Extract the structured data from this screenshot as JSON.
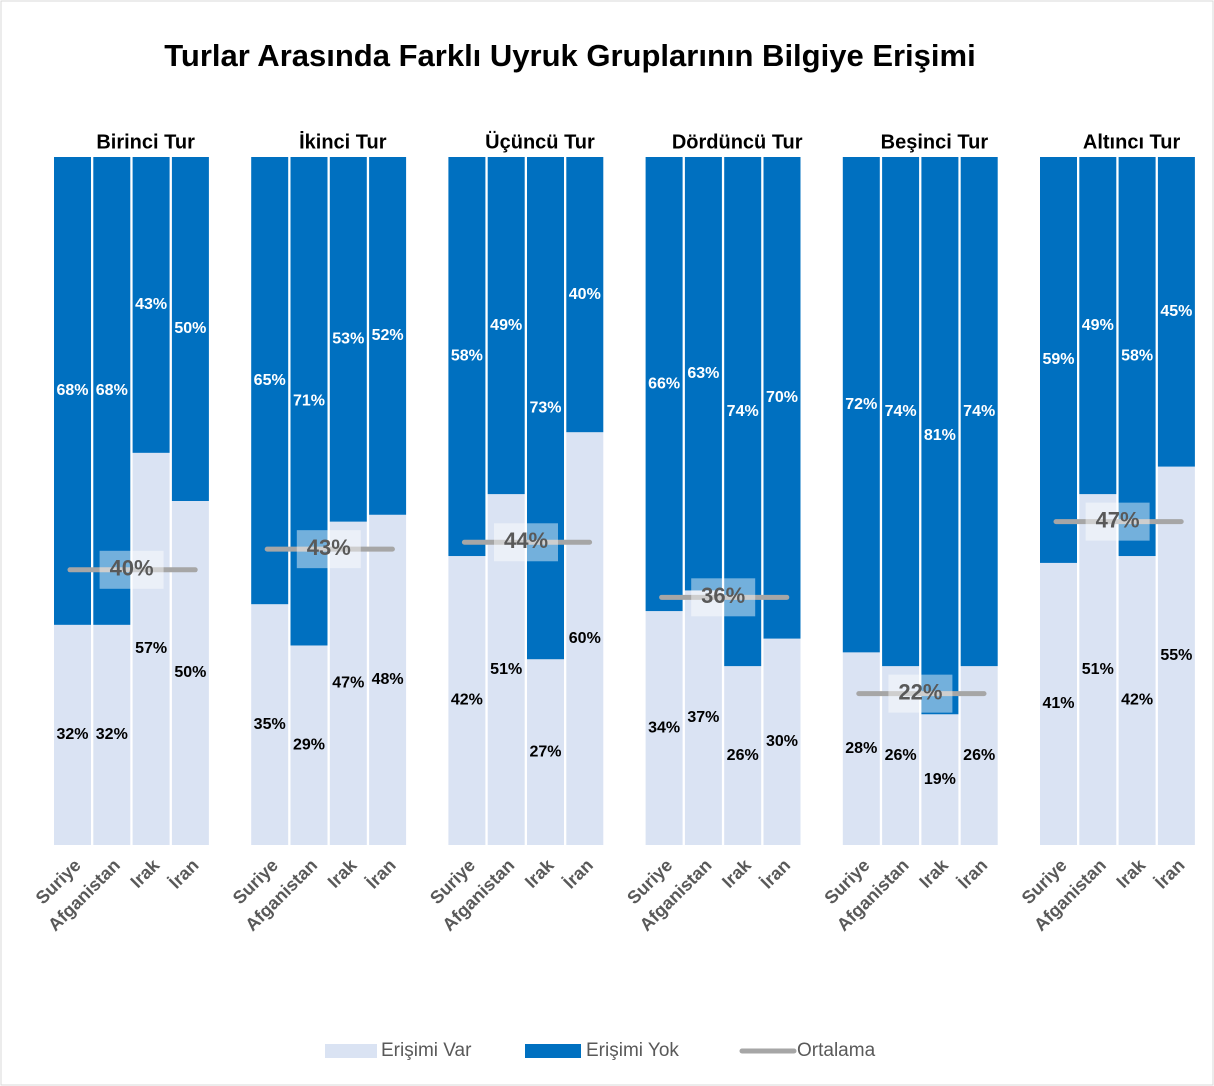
{
  "chart_data": {
    "type": "bar",
    "stacked": true,
    "title": "Turlar Arasında Farklı Uyruk Gruplarının Bilgiye Erişimi",
    "groups": [
      "Birinci Tur",
      "İkinci Tur",
      "Üçüncü Tur",
      "Dördüncü Tur",
      "Beşinci Tur",
      "Altıncı Tur"
    ],
    "categories": [
      "Suriye",
      "Afganistan",
      "Irak",
      "İran",
      "Suriye",
      "Afganistan",
      "Irak",
      "İran",
      "Suriye",
      "Afganistan",
      "Irak",
      "İran",
      "Suriye",
      "Afganistan",
      "Irak",
      "İran",
      "Suriye",
      "Afganistan",
      "Irak",
      "İran",
      "Suriye",
      "Afganistan",
      "Irak",
      "İran"
    ],
    "ylim": [
      0,
      100
    ],
    "series": [
      {
        "name": "Erişimi Var",
        "color": "#dae3f3",
        "values": [
          32,
          32,
          57,
          50,
          35,
          29,
          47,
          48,
          42,
          51,
          27,
          60,
          34,
          37,
          26,
          30,
          28,
          26,
          19,
          26,
          41,
          51,
          42,
          55
        ],
        "value_labels": [
          "32%",
          "32%",
          "57%",
          "50%",
          "35%",
          "29%",
          "47%",
          "48%",
          "42%",
          "51%",
          "27%",
          "60%",
          "34%",
          "37%",
          "26%",
          "30%",
          "28%",
          "26%",
          "19%",
          "26%",
          "41%",
          "51%",
          "42%",
          "55%"
        ]
      },
      {
        "name": "Erişimi Yok",
        "color": "#0070c0",
        "values": [
          68,
          68,
          43,
          50,
          65,
          71,
          53,
          52,
          58,
          49,
          73,
          40,
          66,
          63,
          74,
          70,
          72,
          74,
          81,
          74,
          59,
          49,
          58,
          45
        ],
        "value_labels": [
          "68%",
          "68%",
          "43%",
          "50%",
          "65%",
          "71%",
          "53%",
          "52%",
          "58%",
          "49%",
          "73%",
          "40%",
          "66%",
          "63%",
          "74%",
          "70%",
          "72%",
          "74%",
          "81%",
          "74%",
          "59%",
          "49%",
          "58%",
          "45%"
        ]
      }
    ],
    "averages": {
      "name": "Ortalama",
      "color": "#a6a6a6",
      "values": [
        40,
        43,
        44,
        36,
        22,
        47
      ],
      "value_labels": [
        "40%",
        "43%",
        "44%",
        "36%",
        "22%",
        "47%"
      ]
    }
  }
}
